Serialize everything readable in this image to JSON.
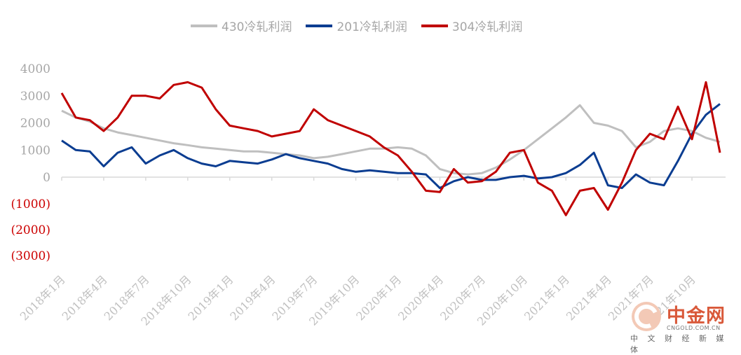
{
  "chart_data": {
    "type": "line",
    "title": "",
    "xlabel": "",
    "ylabel": "",
    "ylim": [
      -3000,
      4000
    ],
    "legend_position": "top-center",
    "grid": false,
    "y_ticks": [
      {
        "value": 4000,
        "label": "4000",
        "color": "#a6a6a6"
      },
      {
        "value": 3000,
        "label": "3000",
        "color": "#a6a6a6"
      },
      {
        "value": 2000,
        "label": "2000",
        "color": "#a6a6a6"
      },
      {
        "value": 1000,
        "label": "1000",
        "color": "#a6a6a6"
      },
      {
        "value": 0,
        "label": "0",
        "color": "#a6a6a6"
      },
      {
        "value": -1000,
        "label": "(1000)",
        "color": "#cc0000"
      },
      {
        "value": -2000,
        "label": "(2000)",
        "color": "#cc0000"
      },
      {
        "value": -3000,
        "label": "(3000)",
        "color": "#cc0000"
      }
    ],
    "x_ticks": [
      "2018年1月",
      "2018年4月",
      "2018年7月",
      "2018年10月",
      "2019年1月",
      "2019年4月",
      "2019年7月",
      "2019年10月",
      "2020年1月",
      "2020年4月",
      "2020年7月",
      "2020年10月",
      "2021年1月",
      "2021年4月",
      "2021年7月",
      "2021年10月"
    ],
    "x_range": [
      "2018-01",
      "2021-12"
    ],
    "x": [
      "2018-01",
      "2018-02",
      "2018-03",
      "2018-04",
      "2018-05",
      "2018-06",
      "2018-07",
      "2018-08",
      "2018-09",
      "2018-10",
      "2018-11",
      "2018-12",
      "2019-01",
      "2019-02",
      "2019-03",
      "2019-04",
      "2019-05",
      "2019-06",
      "2019-07",
      "2019-08",
      "2019-09",
      "2019-10",
      "2019-11",
      "2019-12",
      "2020-01",
      "2020-02",
      "2020-03",
      "2020-04",
      "2020-05",
      "2020-06",
      "2020-07",
      "2020-08",
      "2020-09",
      "2020-10",
      "2020-11",
      "2020-12",
      "2021-01",
      "2021-02",
      "2021-03",
      "2021-04",
      "2021-05",
      "2021-06",
      "2021-07",
      "2021-08",
      "2021-09",
      "2021-10",
      "2021-11",
      "2021-12"
    ],
    "series": [
      {
        "name": "430冷轧利润",
        "color": "#bfbfbf",
        "values": [
          2450,
          2200,
          2050,
          1800,
          1650,
          1550,
          1450,
          1350,
          1250,
          1180,
          1100,
          1050,
          1000,
          950,
          950,
          900,
          850,
          800,
          700,
          750,
          850,
          950,
          1050,
          1050,
          1100,
          1050,
          800,
          300,
          150,
          100,
          150,
          350,
          650,
          1000,
          1400,
          1800,
          2200,
          2650,
          2000,
          1900,
          1700,
          1100,
          1300,
          1700,
          1800,
          1700,
          1450,
          1300
        ]
      },
      {
        "name": "201冷轧利润",
        "color": "#0b3d91",
        "values": [
          1350,
          1000,
          950,
          400,
          900,
          1100,
          500,
          800,
          1000,
          700,
          500,
          400,
          600,
          550,
          500,
          650,
          850,
          700,
          600,
          500,
          300,
          200,
          250,
          200,
          150,
          150,
          100,
          -400,
          -150,
          0,
          -100,
          -100,
          0,
          50,
          -50,
          0,
          150,
          450,
          900,
          -300,
          -400,
          100,
          -200,
          -300,
          600,
          1600,
          2300,
          2700
        ]
      },
      {
        "name": "304冷轧利润",
        "color": "#c00000",
        "values": [
          3100,
          2200,
          2100,
          1700,
          2200,
          3000,
          3000,
          2900,
          3400,
          3500,
          3300,
          2500,
          1900,
          1800,
          1700,
          1500,
          1600,
          1700,
          2500,
          2100,
          1900,
          1700,
          1500,
          1100,
          800,
          200,
          -500,
          -550,
          300,
          -200,
          -150,
          200,
          900,
          1000,
          -200,
          -500,
          -1400,
          -500,
          -400,
          -1200,
          -200,
          1000,
          1600,
          1400,
          2600,
          1400,
          3500,
          900
        ]
      }
    ]
  },
  "watermark": {
    "title": "中金网",
    "url": "CNGOLD.COM.CN",
    "tagline": "中 文 财 经 新 媒 体"
  }
}
